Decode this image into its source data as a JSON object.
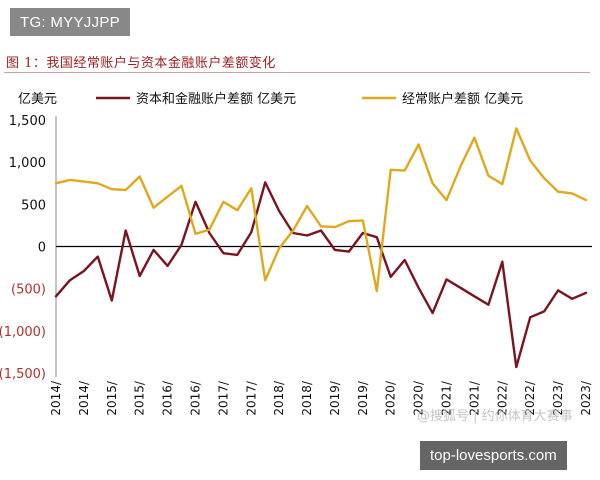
{
  "badges": {
    "telegram": "TG: MYYJJPP",
    "site": "top-lovesports.com"
  },
  "caption": "图 1：我国经常账户与资本金融账户差额变化",
  "watermark": "@搜狐号 | 约你体育大赛事",
  "colors": {
    "capital_series": "#7a1420",
    "current_series": "#e0a81c",
    "zero_line": "#000000",
    "caption_text": "#a02020"
  },
  "chart_data": {
    "type": "line",
    "ylabel": "亿美元",
    "ylim": [
      -1500,
      1500
    ],
    "yticks": [
      1500,
      1000,
      500,
      0,
      -500,
      -1000,
      -1500
    ],
    "ytick_labels": [
      "1,500",
      "1,000",
      "500",
      "0",
      "(500)",
      "(1,000)",
      "(1,500)"
    ],
    "xtick_labels": [
      "2014/",
      "2014/",
      "2015/",
      "2015/",
      "2016/",
      "2016/",
      "2017/",
      "2017/",
      "2018/",
      "2018/",
      "2019/",
      "2019/",
      "2020/",
      "2020/",
      "2021/",
      "2021/",
      "2022/",
      "2022/",
      "2023/",
      "2023/"
    ],
    "series": [
      {
        "name": "资本和金融账户差额 亿美元",
        "color": "#7a1420",
        "values": [
          -590,
          -400,
          -290,
          -120,
          -640,
          190,
          -350,
          -40,
          -230,
          20,
          530,
          160,
          -80,
          -100,
          170,
          760,
          420,
          160,
          130,
          190,
          -40,
          -60,
          160,
          110,
          -360,
          -160,
          -490,
          -790,
          -390,
          -490,
          -590,
          -690,
          -180,
          -1430,
          -840,
          -770,
          -520,
          -620,
          -550
        ],
        "x": [
          0,
          0.5,
          1,
          1.5,
          2,
          2.5,
          3,
          3.5,
          4,
          4.5,
          5,
          5.5,
          6,
          6.5,
          7,
          7.5,
          8,
          8.5,
          9,
          9.5,
          10,
          10.5,
          11,
          11.5,
          12,
          12.5,
          13,
          13.5,
          14,
          14.5,
          15,
          15.5,
          16,
          16.5,
          17,
          17.5,
          18,
          18.5,
          19
        ]
      },
      {
        "name": "经常账户差额 亿美元",
        "color": "#e0a81c",
        "values": [
          750,
          790,
          770,
          750,
          680,
          670,
          830,
          460,
          590,
          720,
          150,
          200,
          530,
          430,
          690,
          -400,
          -20,
          190,
          480,
          240,
          230,
          300,
          310,
          -530,
          910,
          900,
          1210,
          750,
          550,
          950,
          1290,
          840,
          740,
          1400,
          1020,
          810,
          650,
          630,
          550
        ],
        "x": [
          0,
          0.5,
          1,
          1.5,
          2,
          2.5,
          3,
          3.5,
          4,
          4.5,
          5,
          5.5,
          6,
          6.5,
          7,
          7.5,
          8,
          8.5,
          9,
          9.5,
          10,
          10.5,
          11,
          11.5,
          12,
          12.5,
          13,
          13.5,
          14,
          14.5,
          15,
          15.5,
          16,
          16.5,
          17,
          17.5,
          18,
          18.5,
          19
        ]
      }
    ],
    "legend_placement": "top",
    "grid": false
  }
}
